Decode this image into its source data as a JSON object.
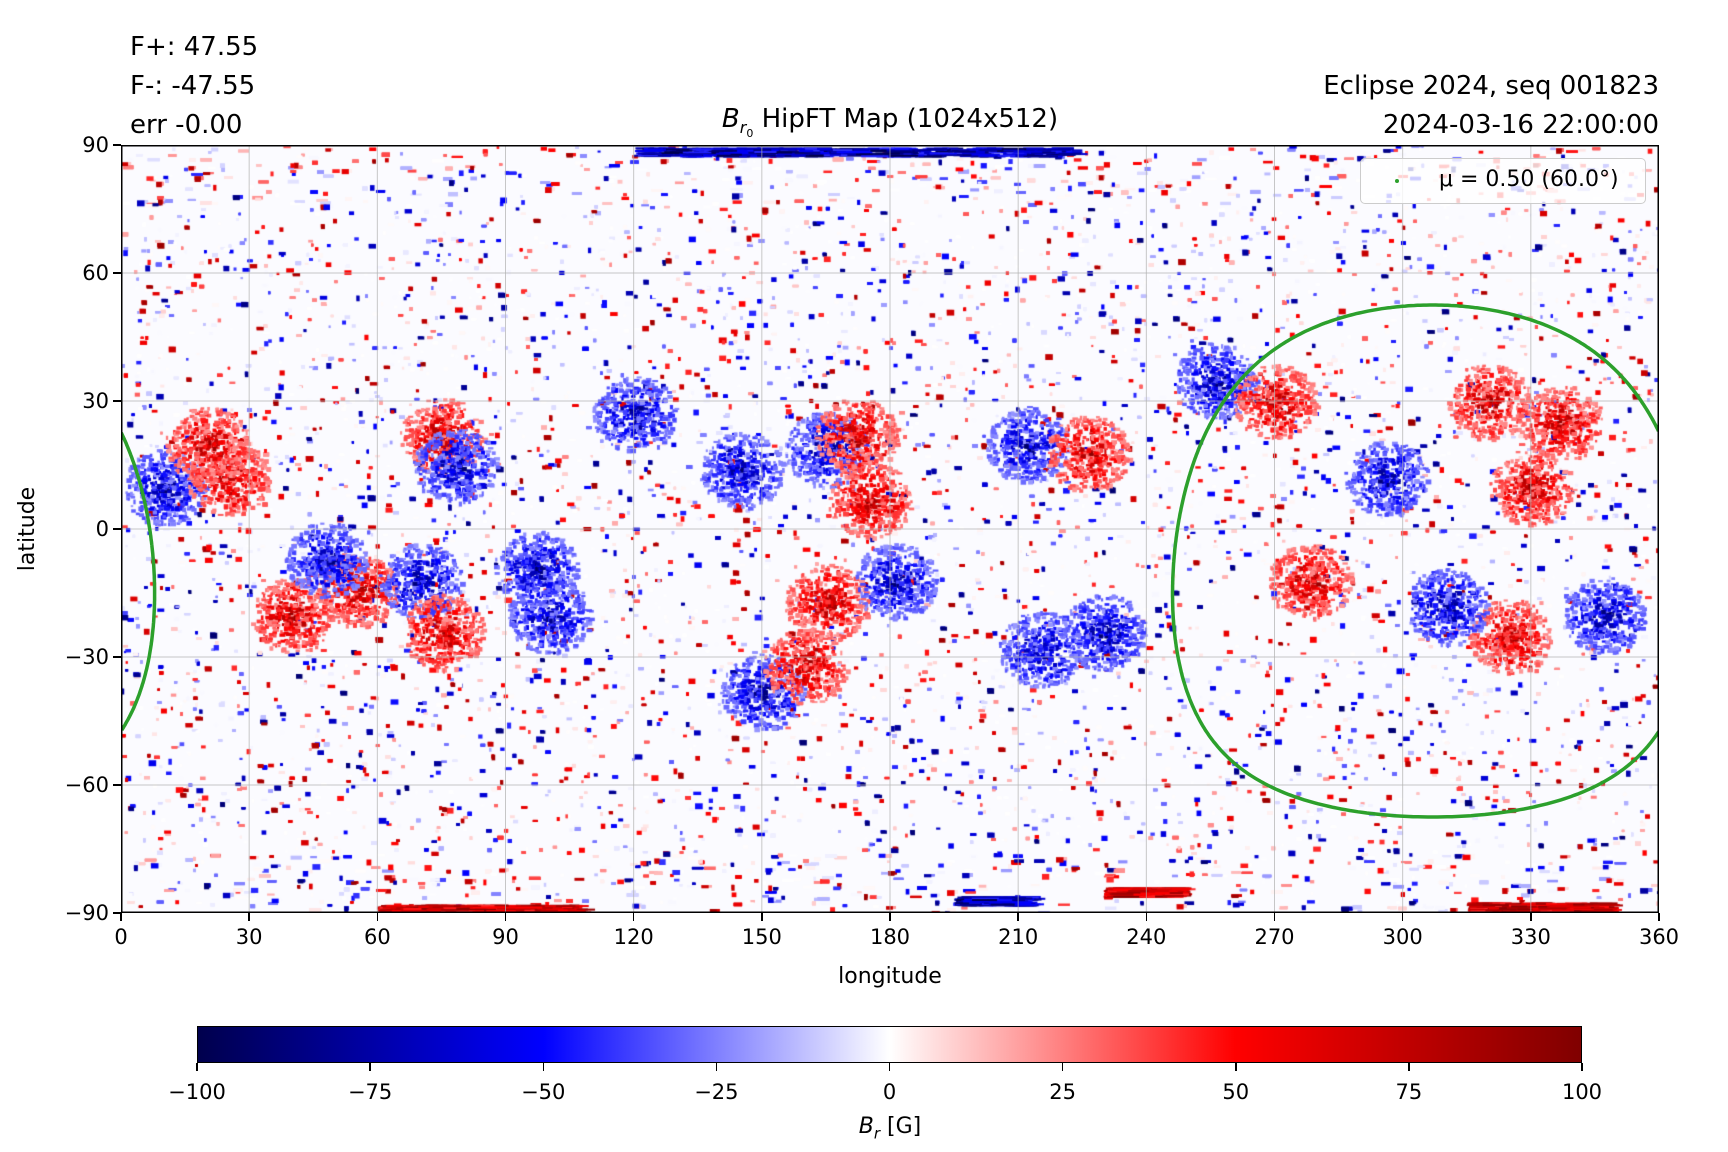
{
  "header": {
    "flux_pos": "F+: 47.55",
    "flux_neg": "F-: -47.55",
    "err": "err -0.00",
    "title_symbol": "B",
    "title_subscript": "r",
    "title_subsub": "0",
    "title_rest": " HipFT Map (1024x512)",
    "run_label": "Eclipse 2024, seq 001823",
    "timestamp": "2024-03-16 22:00:00"
  },
  "chart_data": {
    "type": "heatmap",
    "title": "B_r0 HipFT Map (1024x512)",
    "xlabel": "longitude",
    "ylabel": "latitude",
    "xlim": [
      0,
      360
    ],
    "ylim": [
      -90,
      90
    ],
    "xticks": [
      "0",
      "30",
      "60",
      "90",
      "120",
      "150",
      "180",
      "210",
      "240",
      "270",
      "300",
      "330",
      "360"
    ],
    "yticks": [
      "90",
      "60",
      "30",
      "0",
      "−30",
      "−60",
      "−90"
    ],
    "grid": true,
    "legend": {
      "placement": "top-right",
      "label": "μ = 0.50 (60.0°)",
      "color": "#2ca02c"
    },
    "disk_contour": {
      "center_lon": 307,
      "center_lat": -7.5,
      "radius_deg": 60.0,
      "mu": 0.5,
      "color": "#2ca02c"
    },
    "colorbar": {
      "label_symbol": "B",
      "label_sub": "r",
      "label_unit": " [G]",
      "range": [
        -100,
        100
      ],
      "ticks": [
        "−100",
        "−75",
        "−50",
        "−25",
        "0",
        "25",
        "50",
        "75",
        "100"
      ],
      "tick_values": [
        -100,
        -75,
        -50,
        -25,
        0,
        25,
        50,
        75,
        100
      ],
      "colormap": [
        "#00004d",
        "#0000ff",
        "#ffffff",
        "#ff0000",
        "#800000"
      ]
    },
    "active_regions": [
      {
        "lon": 10,
        "lat": 10,
        "polarity": -1
      },
      {
        "lon": 25,
        "lat": 12,
        "polarity": 1
      },
      {
        "lon": 20,
        "lat": 20,
        "polarity": 1
      },
      {
        "lon": 40,
        "lat": -20,
        "polarity": 1
      },
      {
        "lon": 55,
        "lat": -14,
        "polarity": 1
      },
      {
        "lon": 48,
        "lat": -7,
        "polarity": -1
      },
      {
        "lon": 70,
        "lat": -12,
        "polarity": -1
      },
      {
        "lon": 75,
        "lat": -24,
        "polarity": 1
      },
      {
        "lon": 75,
        "lat": 22,
        "polarity": 1
      },
      {
        "lon": 78,
        "lat": 15,
        "polarity": -1
      },
      {
        "lon": 100,
        "lat": -20,
        "polarity": -1
      },
      {
        "lon": 97,
        "lat": -9,
        "polarity": -1
      },
      {
        "lon": 120,
        "lat": 27,
        "polarity": -1
      },
      {
        "lon": 145,
        "lat": 14,
        "polarity": -1
      },
      {
        "lon": 165,
        "lat": 19,
        "polarity": -1
      },
      {
        "lon": 172,
        "lat": 22,
        "polarity": 1
      },
      {
        "lon": 175,
        "lat": 7,
        "polarity": 1
      },
      {
        "lon": 165,
        "lat": -17,
        "polarity": 1
      },
      {
        "lon": 181,
        "lat": -12,
        "polarity": -1
      },
      {
        "lon": 150,
        "lat": -38,
        "polarity": -1
      },
      {
        "lon": 160,
        "lat": -32,
        "polarity": 1
      },
      {
        "lon": 212,
        "lat": 20,
        "polarity": -1
      },
      {
        "lon": 226,
        "lat": 18,
        "polarity": 1
      },
      {
        "lon": 215,
        "lat": -28,
        "polarity": -1
      },
      {
        "lon": 230,
        "lat": -24,
        "polarity": -1
      },
      {
        "lon": 256,
        "lat": 35,
        "polarity": -1
      },
      {
        "lon": 270,
        "lat": 30,
        "polarity": 1
      },
      {
        "lon": 320,
        "lat": 30,
        "polarity": 1
      },
      {
        "lon": 337,
        "lat": 25,
        "polarity": 1
      },
      {
        "lon": 347,
        "lat": -20,
        "polarity": -1
      },
      {
        "lon": 325,
        "lat": -25,
        "polarity": 1
      },
      {
        "lon": 296,
        "lat": 12,
        "polarity": -1
      },
      {
        "lon": 310,
        "lat": -18,
        "polarity": -1
      },
      {
        "lon": 330,
        "lat": 10,
        "polarity": 1
      },
      {
        "lon": 278,
        "lat": -12,
        "polarity": 1
      }
    ]
  }
}
